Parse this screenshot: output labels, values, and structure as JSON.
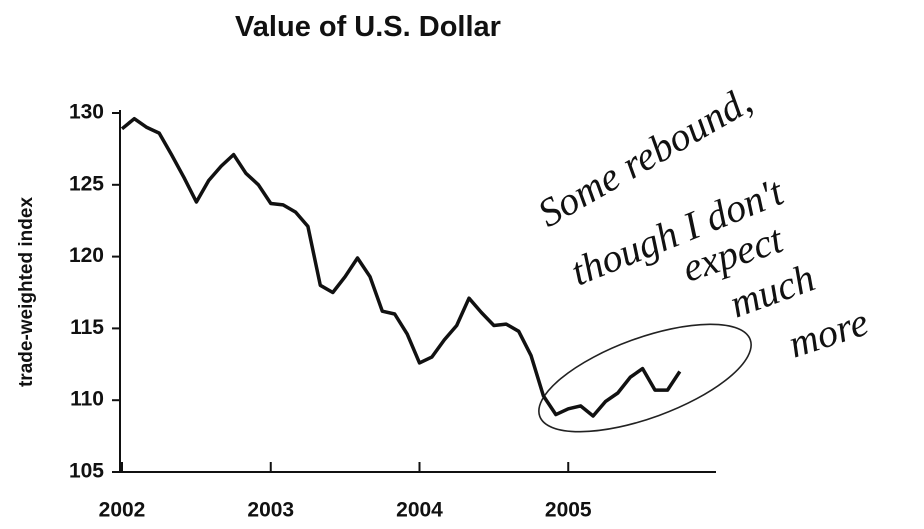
{
  "chart_data": {
    "type": "line",
    "title": "Value of U.S. Dollar",
    "y_label": "trade-weighted index",
    "x": [
      2002,
      2002.083,
      2002.167,
      2002.25,
      2002.333,
      2002.417,
      2002.5,
      2002.583,
      2002.667,
      2002.75,
      2002.833,
      2002.917,
      2003,
      2003.083,
      2003.167,
      2003.25,
      2003.333,
      2003.417,
      2003.5,
      2003.583,
      2003.667,
      2003.75,
      2003.833,
      2003.917,
      2004,
      2004.083,
      2004.167,
      2004.25,
      2004.333,
      2004.417,
      2004.5,
      2004.583,
      2004.667,
      2004.75,
      2004.833,
      2004.917,
      2005,
      2005.083,
      2005.167,
      2005.25,
      2005.333,
      2005.417,
      2005.5,
      2005.583,
      2005.667,
      2005.75
    ],
    "values": [
      128.9,
      129.6,
      129.0,
      128.6,
      127.1,
      125.5,
      123.8,
      125.3,
      126.3,
      127.1,
      125.8,
      125.0,
      123.7,
      123.6,
      123.1,
      122.1,
      118.0,
      117.5,
      118.6,
      119.9,
      118.6,
      116.2,
      116.0,
      114.6,
      112.6,
      113.0,
      114.2,
      115.2,
      117.1,
      116.1,
      115.2,
      115.3,
      114.8,
      113.1,
      110.3,
      109.0,
      109.4,
      109.6,
      108.9,
      109.9,
      110.5,
      111.6,
      112.2,
      110.7,
      110.7,
      112.0
    ],
    "color": "#111111",
    "xlim": [
      2002,
      2006
    ],
    "xticks": [
      2002,
      2003,
      2004,
      2005
    ],
    "ylim": [
      105,
      130
    ],
    "yticks": [
      105,
      110,
      115,
      120,
      125,
      130
    ],
    "annotation": [
      "Some rebound,",
      "though I don't",
      "expect",
      "much",
      "more"
    ]
  }
}
